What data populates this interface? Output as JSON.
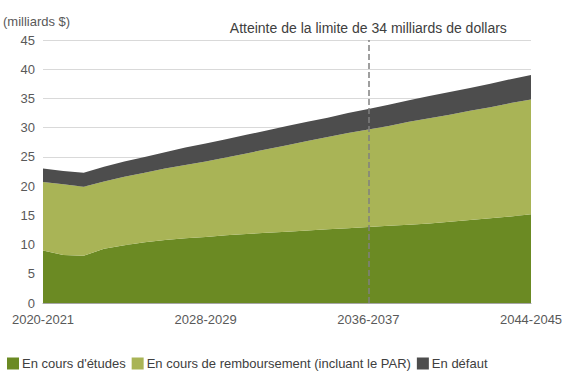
{
  "chart_data": {
    "type": "area",
    "stacked": true,
    "y_label": "(milliards $)",
    "categories": [
      "2020-2021",
      null,
      null,
      null,
      null,
      null,
      null,
      null,
      "2028-2029",
      null,
      null,
      null,
      null,
      null,
      null,
      null,
      "2036-2037",
      null,
      null,
      null,
      null,
      null,
      null,
      null,
      "2044-2045"
    ],
    "series": [
      {
        "name": "En cours d'études",
        "color": "#6b8a23",
        "values": [
          9.0,
          8.2,
          8.1,
          9.3,
          9.9,
          10.4,
          10.8,
          11.1,
          11.3,
          11.6,
          11.8,
          12.0,
          12.2,
          12.4,
          12.6,
          12.8,
          13.0,
          13.2,
          13.4,
          13.6,
          13.9,
          14.2,
          14.5,
          14.8,
          15.2
        ]
      },
      {
        "name": "En cours de remboursement (incluant le PAR)",
        "color": "#a9b456",
        "values": [
          11.7,
          12.1,
          11.8,
          11.5,
          11.7,
          11.9,
          12.2,
          12.5,
          12.9,
          13.3,
          13.8,
          14.3,
          14.8,
          15.3,
          15.8,
          16.3,
          16.7,
          17.1,
          17.6,
          18.0,
          18.3,
          18.7,
          19.0,
          19.4,
          19.6
        ]
      },
      {
        "name": "En défaut",
        "color": "#4d4d4d",
        "values": [
          2.3,
          2.3,
          2.4,
          2.5,
          2.6,
          2.7,
          2.8,
          3.0,
          3.1,
          3.1,
          3.2,
          3.2,
          3.3,
          3.3,
          3.3,
          3.4,
          3.5,
          3.6,
          3.7,
          3.8,
          3.9,
          3.9,
          4.0,
          4.1,
          4.2
        ]
      }
    ],
    "ylim": [
      0,
      45
    ],
    "yticks": [
      0,
      5,
      10,
      15,
      20,
      25,
      30,
      35,
      40,
      45
    ],
    "grid": true,
    "legend": "bottom-left",
    "annotations": [
      {
        "text": "Atteinte de la limite de 34 milliards de dollars",
        "x": "2036-2037",
        "line_style": "dashed"
      }
    ]
  }
}
